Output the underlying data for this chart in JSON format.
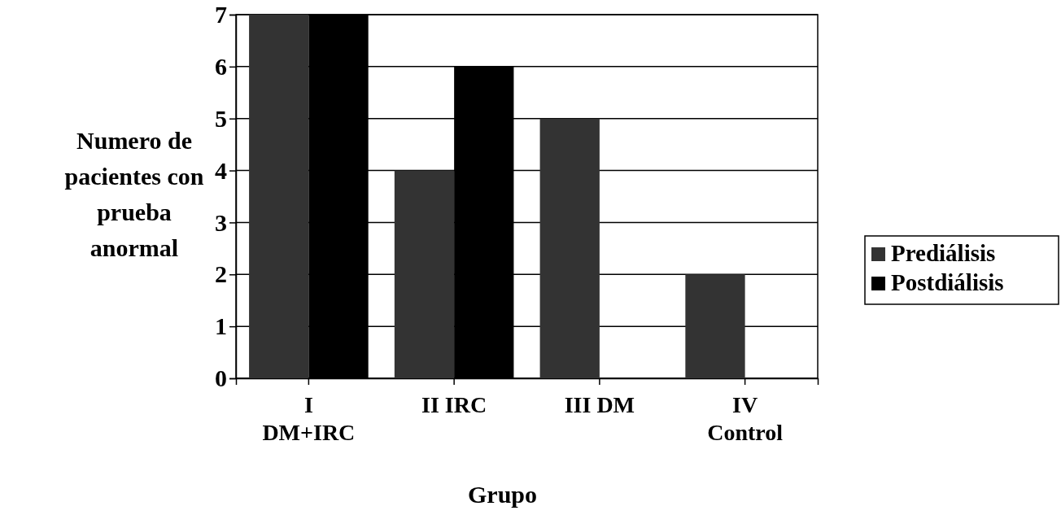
{
  "chart_data": {
    "type": "bar",
    "categories": [
      "I\nDM+IRC",
      "II IRC",
      "III DM",
      "IV\nControl"
    ],
    "series": [
      {
        "name": "Prediálisis",
        "color": "#333333",
        "values": [
          7,
          4,
          5,
          2
        ]
      },
      {
        "name": "Postdiálisis",
        "color": "#000000",
        "values": [
          7,
          6,
          0,
          0
        ]
      }
    ],
    "xlabel": "Grupo",
    "ylabel": "Numero de\npacientes con\nprueba\nanormal",
    "ylim": [
      0,
      7
    ],
    "yticks": [
      0,
      1,
      2,
      3,
      4,
      5,
      6,
      7
    ],
    "grid": "y",
    "legend": "right"
  }
}
